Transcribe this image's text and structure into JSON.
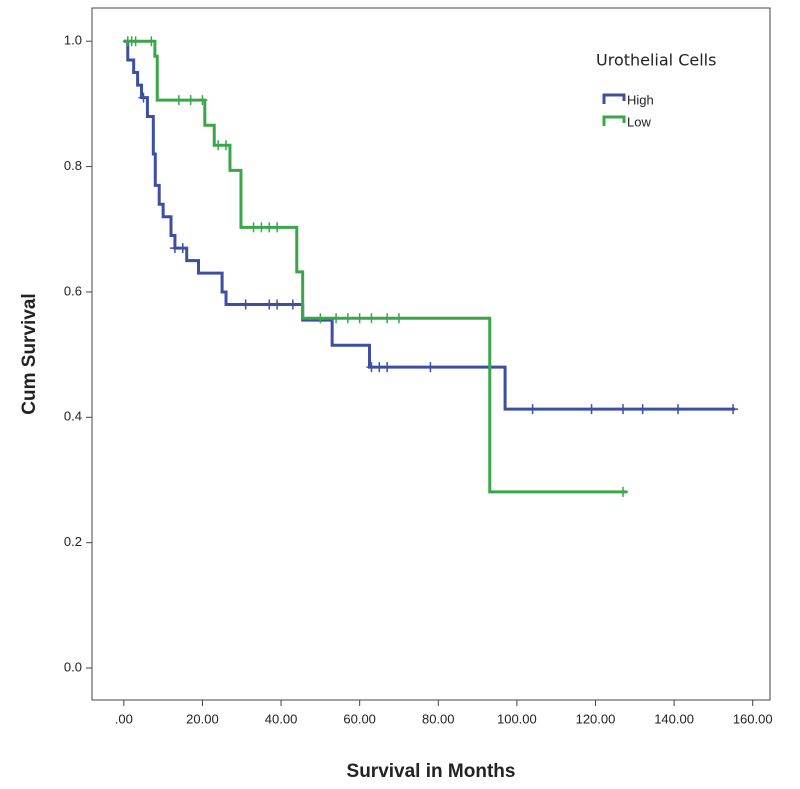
{
  "chart_data": {
    "type": "step",
    "xlabel": "Survival in Months",
    "ylabel": "Cum Survival",
    "legend_title": "Urothelial Cells",
    "xlim": [
      -8.1,
      164.4
    ],
    "ylim": [
      -0.051,
      1.053
    ],
    "xticks": [
      {
        "value": 0,
        "label": ".00"
      },
      {
        "value": 20,
        "label": "20.00"
      },
      {
        "value": 40,
        "label": "40.00"
      },
      {
        "value": 60,
        "label": "60.00"
      },
      {
        "value": 80,
        "label": "80.00"
      },
      {
        "value": 100,
        "label": "100.00"
      },
      {
        "value": 120,
        "label": "120.00"
      },
      {
        "value": 140,
        "label": "140.00"
      },
      {
        "value": 160,
        "label": "160.00"
      }
    ],
    "yticks": [
      {
        "value": 0,
        "label": "0.0"
      },
      0.2,
      0.4,
      0.6,
      0.8,
      {
        "value": 1,
        "label": "1.0"
      }
    ],
    "series": [
      {
        "name": "High",
        "color": "#3d4fa3",
        "x": [
          0,
          1,
          2.5,
          3.5,
          4.5,
          6,
          7.5,
          8,
          9,
          10,
          12,
          13,
          16,
          19,
          25,
          26,
          45.5,
          53,
          62.5,
          97,
          155.5
        ],
        "values": [
          1.0,
          0.97,
          0.95,
          0.93,
          0.91,
          0.88,
          0.82,
          0.77,
          0.74,
          0.72,
          0.69,
          0.67,
          0.65,
          0.63,
          0.6,
          0.58,
          0.555,
          0.515,
          0.48,
          0.413,
          0.413
        ],
        "censored": [
          5,
          13,
          15,
          31,
          37,
          39,
          43,
          63,
          65,
          67,
          78,
          104,
          119,
          127,
          132,
          141,
          155
        ]
      },
      {
        "name": "Low",
        "color": "#3aa64a",
        "x": [
          0,
          7.9,
          8.5,
          20.6,
          23,
          27,
          29.8,
          44,
          45.5,
          93.1,
          128
        ],
        "values": [
          1.0,
          0.976,
          0.906,
          0.866,
          0.834,
          0.794,
          0.703,
          0.632,
          0.558,
          0.281,
          0.281
        ],
        "censored": [
          1,
          2,
          3,
          7,
          14,
          17,
          20,
          24,
          26,
          33,
          35,
          37,
          39,
          50,
          54,
          57,
          60,
          63,
          67,
          70,
          127
        ]
      }
    ]
  }
}
